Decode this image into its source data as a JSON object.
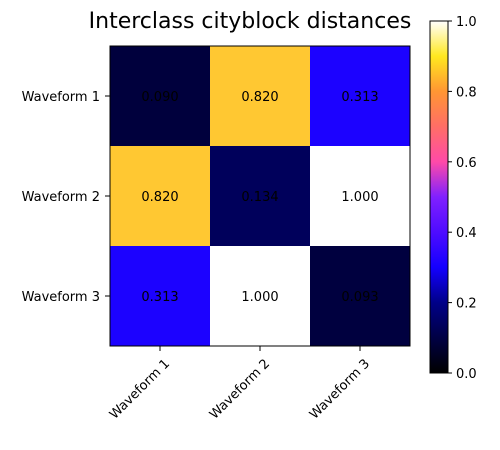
{
  "chart_data": {
    "type": "heatmap",
    "title": "Interclass cityblock distances",
    "rows": [
      "Waveform 1",
      "Waveform 2",
      "Waveform 3"
    ],
    "cols": [
      "Waveform 1",
      "Waveform 2",
      "Waveform 3"
    ],
    "values": [
      [
        0.09,
        0.82,
        0.313
      ],
      [
        0.82,
        0.134,
        1.0
      ],
      [
        0.313,
        1.0,
        0.093
      ]
    ],
    "value_labels": [
      [
        "0.090",
        "0.820",
        "0.313"
      ],
      [
        "0.820",
        "0.134",
        "1.000"
      ],
      [
        "0.313",
        "1.000",
        "0.093"
      ]
    ],
    "colormap": "gnuplot2",
    "vmin": 0.0,
    "vmax": 1.0,
    "colorbar_ticks": [
      "0.0",
      "0.2",
      "0.4",
      "0.6",
      "0.8",
      "1.0"
    ],
    "xtick_rotation_deg": 45
  }
}
